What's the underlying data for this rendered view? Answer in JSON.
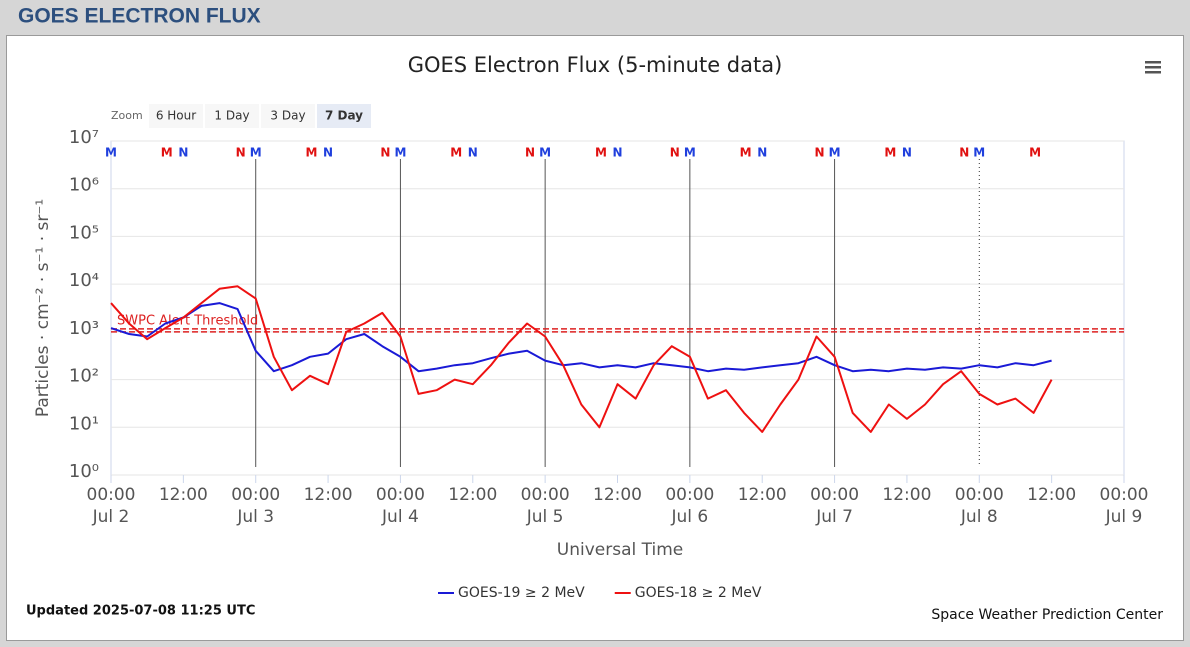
{
  "header": {
    "title": "GOES ELECTRON FLUX"
  },
  "zoom": {
    "label": "Zoom",
    "buttons": [
      "6 Hour",
      "1 Day",
      "3 Day",
      "7 Day"
    ],
    "selected": 3
  },
  "chart_data": {
    "type": "line",
    "title": "GOES Electron Flux (5-minute data)",
    "xlabel": "Universal Time",
    "ylabel": "Particles · cm⁻² · s⁻¹ · sr⁻¹",
    "log_y": true,
    "grid": true,
    "legend": "bottom",
    "ylim": [
      1,
      10000000
    ],
    "yticks": [
      {
        "value": 1,
        "label": "10⁰"
      },
      {
        "value": 10,
        "label": "10¹"
      },
      {
        "value": 100,
        "label": "10²"
      },
      {
        "value": 1000,
        "label": "10³"
      },
      {
        "value": 10000,
        "label": "10⁴"
      },
      {
        "value": 100000,
        "label": "10⁵"
      },
      {
        "value": 1000000,
        "label": "10⁶"
      },
      {
        "value": 10000000,
        "label": "10⁷"
      }
    ],
    "xlim": [
      "Jul 2 00:00",
      "Jul 9 00:00"
    ],
    "xticks": [
      {
        "value": "Jul 2 00:00",
        "label": "00:00"
      },
      {
        "value": "Jul 2 12:00",
        "label": "12:00"
      },
      {
        "value": "Jul 3 00:00",
        "label": "00:00"
      },
      {
        "value": "Jul 3 12:00",
        "label": "12:00"
      },
      {
        "value": "Jul 4 00:00",
        "label": "00:00"
      },
      {
        "value": "Jul 4 12:00",
        "label": "12:00"
      },
      {
        "value": "Jul 5 00:00",
        "label": "00:00"
      },
      {
        "value": "Jul 5 12:00",
        "label": "12:00"
      },
      {
        "value": "Jul 6 00:00",
        "label": "00:00"
      },
      {
        "value": "Jul 6 12:00",
        "label": "12:00"
      },
      {
        "value": "Jul 7 00:00",
        "label": "00:00"
      },
      {
        "value": "Jul 7 12:00",
        "label": "12:00"
      },
      {
        "value": "Jul 8 00:00",
        "label": "00:00"
      },
      {
        "value": "Jul 8 12:00",
        "label": "12:00"
      },
      {
        "value": "Jul 9 00:00",
        "label": "00:00"
      }
    ],
    "xtick_dates": [
      {
        "value": "Jul 2 00:00",
        "label": "Jul 2"
      },
      {
        "value": "Jul 3 00:00",
        "label": "Jul 3"
      },
      {
        "value": "Jul 4 00:00",
        "label": "Jul 4"
      },
      {
        "value": "Jul 5 00:00",
        "label": "Jul 5"
      },
      {
        "value": "Jul 6 00:00",
        "label": "Jul 6"
      },
      {
        "value": "Jul 7 00:00",
        "label": "Jul 7"
      },
      {
        "value": "Jul 8 00:00",
        "label": "Jul 8"
      },
      {
        "value": "Jul 9 00:00",
        "label": "Jul 9"
      }
    ],
    "day_lines": [
      "Jul 3 00:00",
      "Jul 4 00:00",
      "Jul 5 00:00",
      "Jul 6 00:00",
      "Jul 7 00:00"
    ],
    "dotted_lines": [
      "Jul 8 00:00"
    ],
    "threshold": {
      "value": 1000,
      "label": "SWPC Alert Threshold",
      "color": "#dd2222"
    },
    "markers": [
      {
        "x": "Jul 2 00:00",
        "label": "M",
        "color": "#1f3fdd"
      },
      {
        "x": "Jul 2 12:00",
        "label": "N",
        "color": "#1f3fdd"
      },
      {
        "x": "Jul 3 00:00",
        "label": "M",
        "color": "#1f3fdd"
      },
      {
        "x": "Jul 3 12:00",
        "label": "N",
        "color": "#1f3fdd"
      },
      {
        "x": "Jul 4 00:00",
        "label": "M",
        "color": "#1f3fdd"
      },
      {
        "x": "Jul 4 12:00",
        "label": "N",
        "color": "#1f3fdd"
      },
      {
        "x": "Jul 5 00:00",
        "label": "M",
        "color": "#1f3fdd"
      },
      {
        "x": "Jul 5 12:00",
        "label": "N",
        "color": "#1f3fdd"
      },
      {
        "x": "Jul 6 00:00",
        "label": "M",
        "color": "#1f3fdd"
      },
      {
        "x": "Jul 6 12:00",
        "label": "N",
        "color": "#1f3fdd"
      },
      {
        "x": "Jul 7 00:00",
        "label": "M",
        "color": "#1f3fdd"
      },
      {
        "x": "Jul 7 12:00",
        "label": "N",
        "color": "#1f3fdd"
      },
      {
        "x": "Jul 8 00:00",
        "label": "M",
        "color": "#1f3fdd"
      },
      {
        "x": "Jul 2 09:15",
        "label": "M",
        "color": "#e01010"
      },
      {
        "x": "Jul 2 21:30",
        "label": "N",
        "color": "#e01010"
      },
      {
        "x": "Jul 3 09:15",
        "label": "M",
        "color": "#e01010"
      },
      {
        "x": "Jul 3 21:30",
        "label": "N",
        "color": "#e01010"
      },
      {
        "x": "Jul 4 09:15",
        "label": "M",
        "color": "#e01010"
      },
      {
        "x": "Jul 4 21:30",
        "label": "N",
        "color": "#e01010"
      },
      {
        "x": "Jul 5 09:15",
        "label": "M",
        "color": "#e01010"
      },
      {
        "x": "Jul 5 21:30",
        "label": "N",
        "color": "#e01010"
      },
      {
        "x": "Jul 6 09:15",
        "label": "M",
        "color": "#e01010"
      },
      {
        "x": "Jul 6 21:30",
        "label": "N",
        "color": "#e01010"
      },
      {
        "x": "Jul 7 09:15",
        "label": "M",
        "color": "#e01010"
      },
      {
        "x": "Jul 7 21:30",
        "label": "N",
        "color": "#e01010"
      },
      {
        "x": "Jul 8 09:15",
        "label": "M",
        "color": "#e01010"
      }
    ],
    "x": [
      "Jul 2 00:00",
      "Jul 2 03:00",
      "Jul 2 06:00",
      "Jul 2 09:00",
      "Jul 2 12:00",
      "Jul 2 15:00",
      "Jul 2 18:00",
      "Jul 2 21:00",
      "Jul 3 00:00",
      "Jul 3 03:00",
      "Jul 3 06:00",
      "Jul 3 09:00",
      "Jul 3 12:00",
      "Jul 3 15:00",
      "Jul 3 18:00",
      "Jul 3 21:00",
      "Jul 4 00:00",
      "Jul 4 03:00",
      "Jul 4 06:00",
      "Jul 4 09:00",
      "Jul 4 12:00",
      "Jul 4 15:00",
      "Jul 4 18:00",
      "Jul 4 21:00",
      "Jul 5 00:00",
      "Jul 5 03:00",
      "Jul 5 06:00",
      "Jul 5 09:00",
      "Jul 5 12:00",
      "Jul 5 15:00",
      "Jul 5 18:00",
      "Jul 5 21:00",
      "Jul 6 00:00",
      "Jul 6 03:00",
      "Jul 6 06:00",
      "Jul 6 09:00",
      "Jul 6 12:00",
      "Jul 6 15:00",
      "Jul 6 18:00",
      "Jul 6 21:00",
      "Jul 7 00:00",
      "Jul 7 03:00",
      "Jul 7 06:00",
      "Jul 7 09:00",
      "Jul 7 12:00",
      "Jul 7 15:00",
      "Jul 7 18:00",
      "Jul 7 21:00",
      "Jul 8 00:00",
      "Jul 8 03:00",
      "Jul 8 06:00",
      "Jul 8 09:00",
      "Jul 8 12:00"
    ],
    "series": [
      {
        "name": "GOES-19 ≥ 2 MeV",
        "color": "#1a1ad6",
        "values": [
          1200,
          900,
          800,
          1500,
          2000,
          3500,
          4000,
          3000,
          400,
          150,
          200,
          300,
          350,
          700,
          900,
          500,
          300,
          150,
          170,
          200,
          220,
          280,
          350,
          400,
          250,
          200,
          220,
          180,
          200,
          180,
          220,
          200,
          180,
          150,
          170,
          160,
          180,
          200,
          220,
          300,
          200,
          150,
          160,
          150,
          170,
          160,
          180,
          170,
          200,
          180,
          220,
          200,
          250
        ]
      },
      {
        "name": "GOES-18 ≥ 2 MeV",
        "color": "#ee1111",
        "values": [
          4000,
          1500,
          700,
          1200,
          2000,
          4000,
          8000,
          9000,
          5000,
          300,
          60,
          120,
          80,
          1000,
          1500,
          2500,
          800,
          50,
          60,
          100,
          80,
          200,
          600,
          1500,
          800,
          200,
          30,
          10,
          80,
          40,
          200,
          500,
          300,
          40,
          60,
          20,
          8,
          30,
          100,
          800,
          300,
          20,
          8,
          30,
          15,
          30,
          80,
          150,
          50,
          30,
          40,
          20,
          100
        ]
      }
    ]
  },
  "footer": {
    "updated": "Updated 2025-07-08 11:25 UTC",
    "credit": "Space Weather Prediction Center"
  }
}
